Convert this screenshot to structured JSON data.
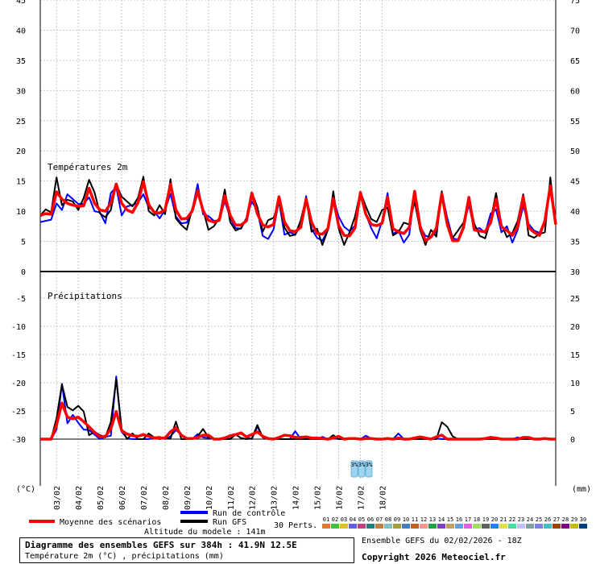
{
  "chart_data": {
    "type": "line",
    "title": "Diagramme des ensembles GEFS sur 384h : 41.9N 12.5E",
    "subtitle": "Température 2m (°C) , précipitations (mm)",
    "run_info": "Ensemble GEFS du 02/02/2026 - 18Z",
    "copyright": "Copyright 2026 Meteociel.fr",
    "altitude": "Altitude du modele : 141m",
    "x_dates": [
      "03/02",
      "04/02",
      "05/02",
      "06/02",
      "07/02",
      "08/02",
      "09/02",
      "10/02",
      "11/02",
      "12/02",
      "13/02",
      "14/02",
      "15/02",
      "16/02",
      "17/02",
      "18/02"
    ],
    "x_step_hours": 6,
    "panels": {
      "temperature": {
        "label": "Températures 2m",
        "unit": "(°C)",
        "left_ticks": [
          "45",
          "40",
          "35",
          "30",
          "25",
          "20",
          "15",
          "10",
          "5",
          "0"
        ],
        "right_ticks": [
          "75",
          "70",
          "65",
          "60",
          "55",
          "50",
          "45",
          "40",
          "35",
          "30"
        ],
        "ylim": [
          0,
          45
        ]
      },
      "precipitation": {
        "label": "Précipitations",
        "unit": "(mm)",
        "left_ticks": [
          "0",
          "-5",
          "-10",
          "-15",
          "-20",
          "-25",
          "-30"
        ],
        "right_ticks": [
          "30",
          "25",
          "20",
          "15",
          "10",
          "5",
          "0"
        ],
        "ylim": [
          0,
          30
        ]
      }
    },
    "legend": {
      "mean": {
        "label": "Moyenne des scénarios",
        "color": "#ff0000"
      },
      "control": {
        "label": "Run de contrôle",
        "color": "#0000ff"
      },
      "gfs": {
        "label": "Run GFS",
        "color": "#000000"
      },
      "perts_label": "30 Perts.",
      "members": [
        "01",
        "02",
        "03",
        "04",
        "05",
        "06",
        "07",
        "08",
        "09",
        "10",
        "11",
        "12",
        "13",
        "14",
        "15",
        "16",
        "17",
        "18",
        "19",
        "20",
        "21",
        "22",
        "23",
        "24",
        "25",
        "26",
        "27",
        "28",
        "29",
        "30"
      ],
      "member_colors": [
        "#e07830",
        "#40c040",
        "#e0c020",
        "#6060e0",
        "#c04080",
        "#208080",
        "#c08040",
        "#80c0c0",
        "#a0a040",
        "#4080c0",
        "#c06020",
        "#ff9090",
        "#20a040",
        "#8040c0",
        "#c0a060",
        "#60a0e0",
        "#e060e0",
        "#a0e060",
        "#606060",
        "#2080ff",
        "#e0e040",
        "#40e0a0",
        "#c0c0ff",
        "#80a0a0",
        "#8080e0",
        "#40c0c0",
        "#a04000",
        "#800080",
        "#c0c000",
        "#004080"
      ]
    },
    "snow_markers": [
      "3%",
      "3%",
      "3%"
    ],
    "series": {
      "mean_temperature": [
        9.3,
        9.6,
        9.5,
        13.2,
        12.0,
        11.3,
        11.0,
        10.8,
        10.9,
        13.8,
        11.3,
        10.2,
        10.0,
        11.3,
        14.5,
        11.3,
        10.2,
        9.8,
        11.4,
        14.9,
        11.1,
        9.8,
        9.7,
        10.2,
        14.5,
        10.2,
        8.7,
        8.8,
        10.0,
        13.4,
        10.1,
        8.5,
        8.2,
        8.5,
        12.6,
        9.3,
        7.7,
        7.7,
        8.4,
        13.0,
        9.6,
        7.7,
        7.4,
        7.8,
        12.4,
        8.2,
        6.8,
        6.6,
        7.3,
        12.0,
        8.2,
        6.3,
        6.2,
        7.1,
        12.1,
        7.6,
        6.0,
        5.9,
        7.2,
        13.1,
        9.5,
        7.8,
        7.6,
        8.0,
        12.3,
        7.1,
        6.6,
        6.3,
        7.3,
        13.3,
        7.5,
        5.1,
        5.7,
        7.2,
        12.9,
        7.8,
        5.1,
        5.1,
        7.3,
        12.3,
        6.9,
        6.7,
        6.6,
        8.1,
        12.0,
        7.4,
        6.8,
        6.0,
        7.4,
        12.4,
        7.3,
        6.5,
        6.0,
        8.4,
        14.2,
        7.8
      ],
      "control_temperature": [
        8.2,
        8.4,
        8.6,
        11.3,
        10.2,
        12.8,
        12.0,
        11.2,
        11.2,
        12.3,
        10.0,
        9.8,
        8.0,
        13.0,
        14.0,
        9.3,
        10.8,
        11.0,
        11.4,
        12.8,
        10.6,
        10.0,
        8.8,
        10.2,
        12.9,
        9.1,
        8.0,
        8.1,
        10.2,
        14.5,
        9.5,
        9.2,
        8.4,
        8.5,
        11.7,
        8.9,
        7.2,
        7.1,
        8.9,
        11.6,
        10.1,
        5.9,
        5.4,
        7.0,
        11.7,
        6.1,
        6.5,
        6.1,
        7.8,
        12.5,
        7.1,
        5.6,
        5.1,
        6.9,
        12.2,
        9.1,
        7.4,
        6.7,
        7.6,
        12.6,
        9.5,
        7.2,
        5.5,
        8.4,
        13.0,
        6.2,
        6.8,
        4.8,
        6.1,
        13.3,
        7.5,
        5.9,
        5.7,
        6.6,
        13.2,
        8.9,
        5.5,
        5.3,
        7.6,
        11.1,
        7.0,
        7.2,
        6.4,
        9.6,
        10.3,
        6.5,
        7.5,
        4.8,
        6.9,
        10.9,
        7.9,
        6.8,
        6.4,
        8.5,
        14.7,
        8.1
      ],
      "gfs_temperature": [
        9.3,
        10.3,
        9.8,
        15.6,
        11.0,
        11.9,
        11.6,
        10.2,
        12.2,
        15.2,
        13.1,
        9.6,
        9.0,
        10.2,
        14.5,
        12.4,
        11.6,
        10.8,
        12.2,
        15.7,
        10.0,
        9.3,
        11.0,
        9.5,
        15.3,
        8.8,
        7.7,
        6.9,
        10.4,
        12.9,
        10.3,
        6.9,
        7.5,
        8.9,
        13.6,
        8.2,
        6.8,
        7.2,
        8.7,
        13.1,
        10.7,
        6.6,
        8.5,
        8.9,
        11.6,
        7.3,
        5.9,
        6.1,
        8.5,
        12.2,
        6.6,
        7.1,
        4.4,
        6.9,
        13.3,
        7.1,
        4.4,
        6.5,
        9.1,
        13.2,
        10.8,
        8.7,
        8.2,
        10.2,
        10.6,
        6.0,
        6.5,
        8.1,
        7.8,
        11.6,
        6.9,
        4.4,
        6.9,
        5.8,
        13.3,
        8.2,
        5.6,
        6.8,
        8.1,
        12.2,
        7.9,
        5.9,
        5.5,
        8.5,
        13.0,
        7.8,
        5.7,
        6.4,
        8.4,
        12.8,
        6.0,
        5.6,
        6.2,
        6.5,
        15.6,
        7.8
      ],
      "mean_precipitation": [
        0.0,
        0.0,
        0.0,
        2.5,
        6.4,
        3.9,
        3.6,
        3.9,
        3.1,
        2.2,
        1.2,
        0.4,
        0.5,
        1.8,
        4.9,
        1.5,
        0.9,
        0.6,
        0.5,
        0.8,
        0.5,
        0.2,
        0.2,
        0.2,
        1.3,
        2.0,
        0.7,
        0.1,
        0.1,
        0.3,
        0.7,
        0.7,
        0.0,
        0.0,
        0.2,
        0.6,
        0.8,
        1.1,
        0.4,
        0.8,
        1.3,
        0.5,
        0.1,
        0.0,
        0.3,
        0.7,
        0.6,
        0.3,
        0.3,
        0.4,
        0.2,
        0.2,
        0.1,
        0.0,
        0.2,
        0.5,
        0.0,
        0.1,
        0.1,
        0.0,
        0.1,
        0.1,
        0.0,
        0.0,
        0.1,
        0.0,
        0.2,
        0.0,
        0.0,
        0.2,
        0.4,
        0.2,
        0.0,
        0.4,
        0.7,
        0.0,
        0.0,
        0.0,
        0.0,
        0.0,
        0.0,
        0.0,
        0.1,
        0.3,
        0.2,
        0.0,
        0.0,
        0.0,
        0.0,
        0.3,
        0.3,
        0.0,
        0.0,
        0.1,
        0.0,
        0.0
      ],
      "control_precipitation": [
        0.0,
        0.0,
        0.0,
        1.7,
        9.8,
        2.8,
        4.3,
        2.9,
        1.7,
        1.6,
        0.8,
        0.0,
        0.4,
        0.6,
        11.1,
        1.3,
        0.1,
        0.0,
        0.0,
        0.0,
        0.0,
        0.3,
        0.4,
        0.0,
        0.5,
        1.6,
        0.8,
        0.0,
        0.0,
        0.9,
        0.3,
        0.2,
        0.0,
        0.0,
        0.0,
        0.1,
        0.8,
        1.2,
        0.3,
        0.0,
        2.2,
        0.4,
        0.0,
        0.1,
        0.0,
        0.0,
        0.0,
        1.4,
        0.0,
        0.0,
        0.0,
        0.0,
        0.4,
        0.0,
        0.3,
        0.0,
        0.0,
        0.0,
        0.1,
        0.0,
        0.6,
        0.1,
        0.0,
        0.0,
        0.0,
        0.0,
        1.0,
        0.0,
        0.0,
        0.2,
        0.0,
        0.0,
        0.0,
        0.1,
        0.0,
        0.0,
        0.0,
        0.0,
        0.0,
        0.0,
        0.0,
        0.0,
        0.0,
        0.4,
        0.1,
        0.0,
        0.0,
        0.0,
        0.3,
        0.0,
        0.0,
        0.0,
        0.0,
        0.0,
        0.0,
        0.0
      ],
      "gfs_precipitation": [
        0.0,
        0.0,
        0.0,
        3.7,
        9.7,
        5.7,
        5.1,
        5.9,
        4.9,
        0.7,
        1.3,
        0.7,
        0.3,
        3.0,
        10.6,
        1.8,
        0.0,
        1.0,
        0.0,
        0.0,
        1.0,
        0.3,
        0.0,
        0.3,
        0.1,
        3.1,
        0.0,
        0.0,
        0.0,
        0.5,
        1.8,
        0.3,
        0.0,
        0.0,
        0.0,
        0.0,
        0.8,
        0.2,
        0.0,
        0.1,
        2.5,
        0.3,
        0.0,
        0.0,
        0.0,
        0.0,
        0.0,
        0.0,
        0.0,
        0.0,
        0.0,
        0.0,
        0.0,
        0.0,
        0.7,
        0.0,
        0.0,
        0.0,
        0.0,
        0.0,
        0.0,
        0.0,
        0.0,
        0.0,
        0.0,
        0.0,
        0.0,
        0.0,
        0.0,
        0.0,
        0.0,
        0.0,
        0.0,
        0.0,
        3.0,
        2.2,
        0.5,
        0.0,
        0.0,
        0.0,
        0.0,
        0.0,
        0.0,
        0.0,
        0.0,
        0.0,
        0.0,
        0.0,
        0.0,
        0.0,
        0.0,
        0.0,
        0.0,
        0.0,
        0.0,
        0.0
      ]
    }
  }
}
